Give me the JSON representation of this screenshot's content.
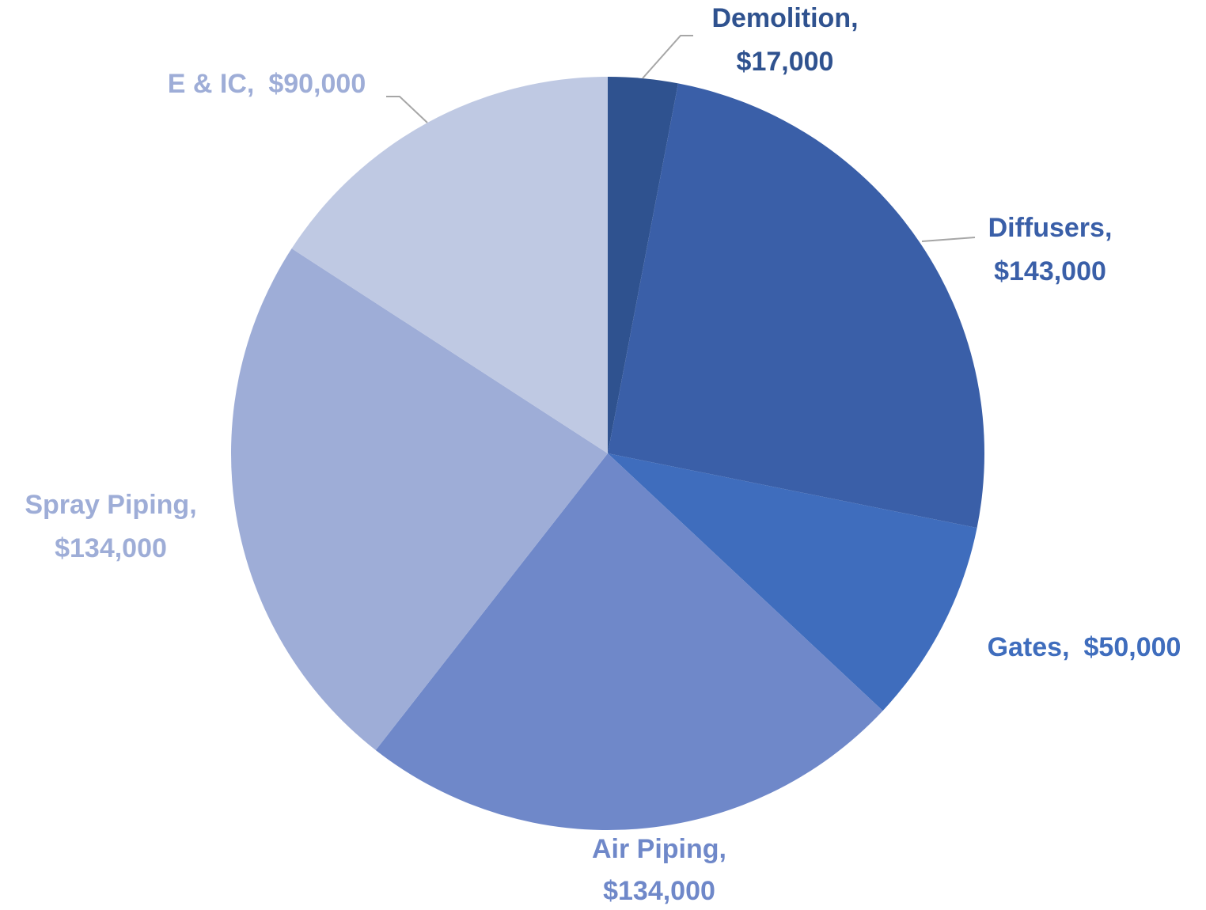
{
  "chart_data": {
    "type": "pie",
    "categories": [
      "Demolition",
      "Diffusers",
      "Gates",
      "Air Piping",
      "Spray Piping",
      "E & IC"
    ],
    "values": [
      17000,
      143000,
      50000,
      134000,
      134000,
      90000
    ],
    "value_labels": [
      "$17,000",
      "$143,000",
      "$50,000",
      "$134,000",
      "$134,000",
      "$90,000"
    ],
    "label_separator": ",",
    "colors": [
      "#2f528f",
      "#3a5fa8",
      "#3f6dbd",
      "#6f88c9",
      "#9eadd7",
      "#bfc9e3"
    ]
  }
}
